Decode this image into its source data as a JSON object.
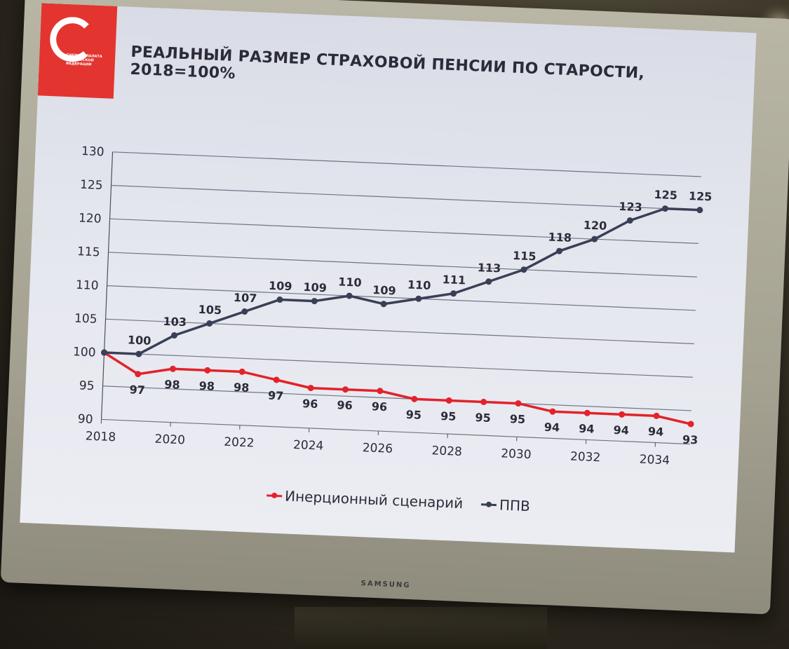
{
  "colors": {
    "red": "#e3222a",
    "navy": "#3a3f57",
    "logo": "#e3342f"
  },
  "logo": {
    "text": "СЧЕТНАЯ ПАЛАТА РОССИЙСКОЙ ФЕДЕРАЦИИ"
  },
  "tv": {
    "brand": "SAMSUNG"
  },
  "chart_data": {
    "type": "line",
    "title": "РЕАЛЬНЫЙ РАЗМЕР СТРАХОВОЙ ПЕНСИИ ПО СТАРОСТИ, 2018=100%",
    "x": [
      2018,
      2019,
      2020,
      2021,
      2022,
      2023,
      2024,
      2025,
      2026,
      2027,
      2028,
      2029,
      2030,
      2031,
      2032,
      2033,
      2034,
      2035
    ],
    "x_tick_labels": [
      "2018",
      "2020",
      "2022",
      "2024",
      "2026",
      "2028",
      "2030",
      "2032",
      "2034"
    ],
    "y_ticks": [
      90,
      95,
      100,
      105,
      110,
      115,
      120,
      125,
      130
    ],
    "ylim": [
      90,
      130
    ],
    "grid": true,
    "legend_position": "bottom",
    "series": [
      {
        "name": "Инерционный сценарий",
        "color": "red",
        "values": [
          100,
          97,
          98,
          98,
          98,
          97,
          96,
          96,
          96,
          95,
          95,
          95,
          95,
          94,
          94,
          94,
          94,
          93
        ]
      },
      {
        "name": "ППВ",
        "color": "navy",
        "values": [
          100,
          100,
          103,
          105,
          107,
          109,
          109,
          110,
          109,
          110,
          111,
          113,
          115,
          118,
          120,
          123,
          125,
          125
        ]
      }
    ]
  }
}
